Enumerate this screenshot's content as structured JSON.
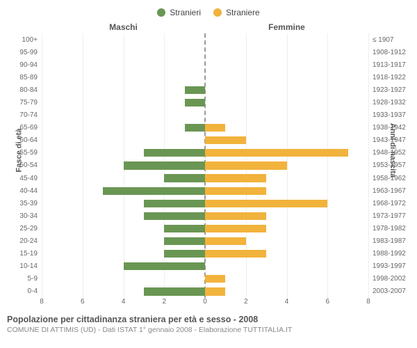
{
  "chart": {
    "type": "population-pyramid",
    "legend": {
      "male": {
        "label": "Stranieri",
        "color": "#6a9654"
      },
      "female": {
        "label": "Straniere",
        "color": "#f1b33c"
      }
    },
    "header": {
      "left_title": "Maschi",
      "right_title": "Femmine"
    },
    "y_left_title": "Fasce di età",
    "y_right_title": "Anni di nascita",
    "x_ticks_left": [
      "8",
      "6",
      "4",
      "2",
      "0"
    ],
    "x_ticks_right": [
      "0",
      "2",
      "4",
      "6",
      "8"
    ],
    "x_max": 8,
    "grid_color": "#eeeeee",
    "center_line_color": "#999999",
    "bar_border_radius": "0px",
    "background_color": "#ffffff",
    "rows": [
      {
        "age": "100+",
        "birth": "≤ 1907",
        "m": 0,
        "f": 0
      },
      {
        "age": "95-99",
        "birth": "1908-1912",
        "m": 0,
        "f": 0
      },
      {
        "age": "90-94",
        "birth": "1913-1917",
        "m": 0,
        "f": 0
      },
      {
        "age": "85-89",
        "birth": "1918-1922",
        "m": 0,
        "f": 0
      },
      {
        "age": "80-84",
        "birth": "1923-1927",
        "m": 1,
        "f": 0
      },
      {
        "age": "75-79",
        "birth": "1928-1932",
        "m": 1,
        "f": 0
      },
      {
        "age": "70-74",
        "birth": "1933-1937",
        "m": 0,
        "f": 0
      },
      {
        "age": "65-69",
        "birth": "1938-1942",
        "m": 1,
        "f": 1
      },
      {
        "age": "60-64",
        "birth": "1943-1947",
        "m": 0,
        "f": 2
      },
      {
        "age": "55-59",
        "birth": "1948-1952",
        "m": 3,
        "f": 7
      },
      {
        "age": "50-54",
        "birth": "1953-1957",
        "m": 4,
        "f": 4
      },
      {
        "age": "45-49",
        "birth": "1958-1962",
        "m": 2,
        "f": 3
      },
      {
        "age": "40-44",
        "birth": "1963-1967",
        "m": 5,
        "f": 3
      },
      {
        "age": "35-39",
        "birth": "1968-1972",
        "m": 3,
        "f": 6
      },
      {
        "age": "30-34",
        "birth": "1973-1977",
        "m": 3,
        "f": 3
      },
      {
        "age": "25-29",
        "birth": "1978-1982",
        "m": 2,
        "f": 3
      },
      {
        "age": "20-24",
        "birth": "1983-1987",
        "m": 2,
        "f": 2
      },
      {
        "age": "15-19",
        "birth": "1988-1992",
        "m": 2,
        "f": 3
      },
      {
        "age": "10-14",
        "birth": "1993-1997",
        "m": 4,
        "f": 0
      },
      {
        "age": "5-9",
        "birth": "1998-2002",
        "m": 0,
        "f": 1
      },
      {
        "age": "0-4",
        "birth": "2003-2007",
        "m": 3,
        "f": 1
      }
    ]
  },
  "footer": {
    "title": "Popolazione per cittadinanza straniera per età e sesso - 2008",
    "subtitle": "COMUNE DI ATTIMIS (UD) - Dati ISTAT 1° gennaio 2008 - Elaborazione TUTTITALIA.IT"
  }
}
